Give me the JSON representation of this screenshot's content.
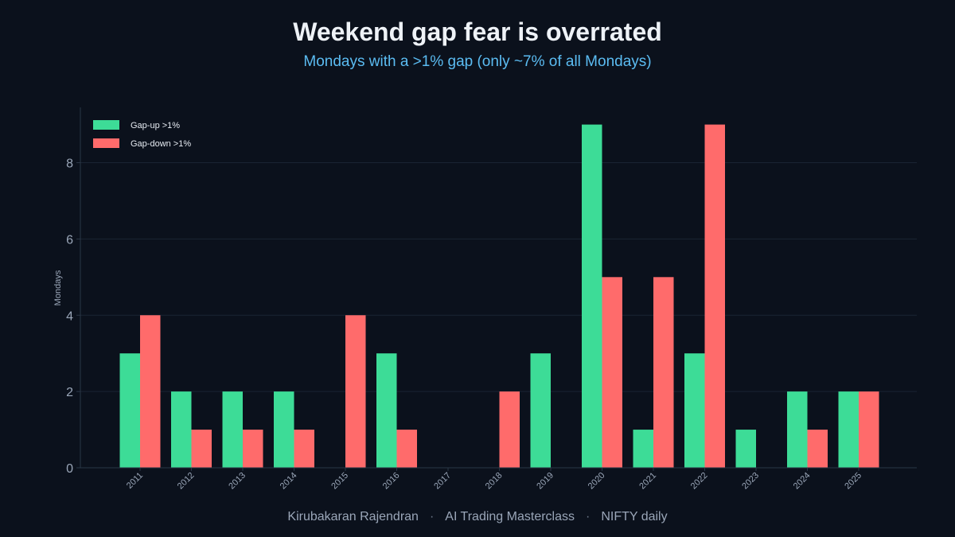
{
  "chart_data": {
    "type": "bar",
    "title": "Weekend gap fear is overrated",
    "subtitle": "Mondays with a >1% gap (only ~7% of all Mondays)",
    "xlabel": "",
    "ylabel": "Mondays",
    "ylim": [
      0,
      9.45
    ],
    "yticks": [
      0,
      2,
      4,
      6,
      8
    ],
    "grid": true,
    "legend_position": "top-left",
    "categories": [
      "2011",
      "2012",
      "2013",
      "2014",
      "2015",
      "2016",
      "2017",
      "2018",
      "2019",
      "2020",
      "2021",
      "2022",
      "2023",
      "2024",
      "2025"
    ],
    "series": [
      {
        "name": "Gap-up >1%",
        "color": "#3ddc97",
        "values": [
          3,
          2,
          2,
          2,
          0,
          3,
          0,
          0,
          3,
          9,
          1,
          3,
          1,
          2,
          2
        ]
      },
      {
        "name": "Gap-down >1%",
        "color": "#ff6b6b",
        "values": [
          4,
          1,
          1,
          1,
          4,
          1,
          0,
          2,
          0,
          5,
          5,
          9,
          0,
          1,
          2
        ]
      }
    ]
  },
  "footer": {
    "author": "Kirubakaran Rajendran",
    "course": "AI Trading Masterclass",
    "dataset": "NIFTY daily"
  },
  "colors": {
    "background": "#0b111c",
    "title": "#eef2f7",
    "subtitle": "#5bbcf2",
    "grid": "#1a2433",
    "axis": "#2a3646",
    "tick_label": "#9aa6b8"
  }
}
